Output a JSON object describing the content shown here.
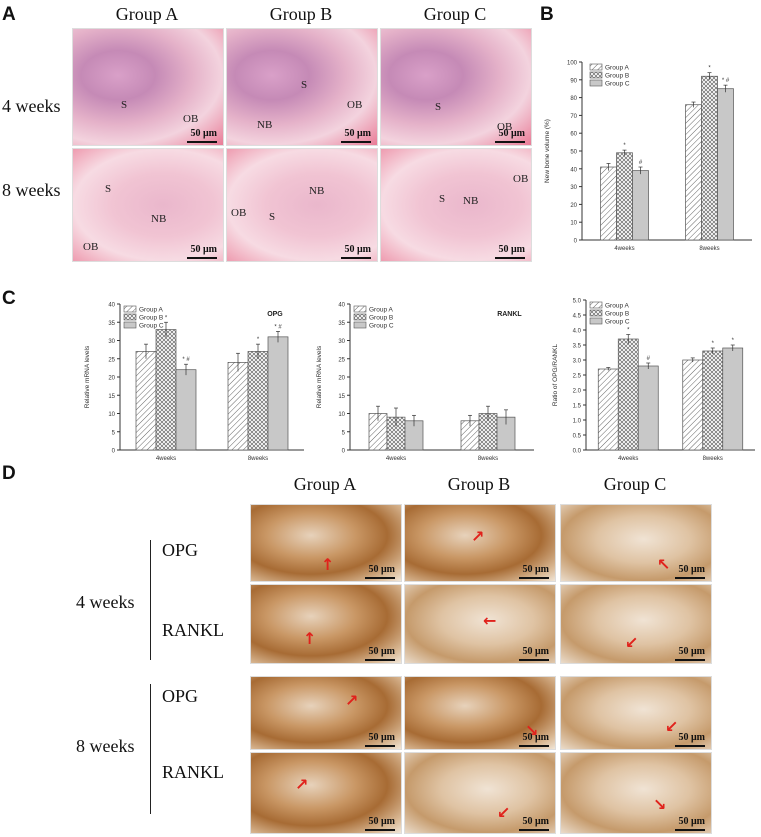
{
  "panels": {
    "A": {
      "letter": "A",
      "columns": [
        "Group A",
        "Group B",
        "Group C"
      ],
      "rows": [
        "4 weeks",
        "8 weeks"
      ],
      "scale": "50 μm",
      "labels": {
        "r0c0": [
          "S",
          "OB"
        ],
        "r0c1": [
          "S",
          "NB",
          "OB"
        ],
        "r0c2": [
          "S",
          "OB"
        ],
        "r1c0": [
          "S",
          "NB",
          "OB"
        ],
        "r1c1": [
          "NB",
          "S",
          "OB"
        ],
        "r1c2": [
          "S",
          "NB",
          "OB"
        ]
      }
    },
    "B": {
      "letter": "B"
    },
    "C": {
      "letter": "C"
    },
    "D": {
      "letter": "D",
      "columns": [
        "Group A",
        "Group B",
        "Group C"
      ],
      "time_labels": [
        "4 weeks",
        "8 weeks"
      ],
      "stain_labels": [
        "OPG",
        "RANKL",
        "OPG",
        "RANKL"
      ],
      "scale": "50 μm"
    }
  },
  "chart_data": [
    {
      "type": "bar",
      "panel": "B",
      "categories": [
        "4weeks",
        "8weeks"
      ],
      "series": [
        {
          "name": "Group A",
          "values": [
            41,
            76
          ],
          "errors": [
            2,
            1.5
          ],
          "marks": [
            "",
            ""
          ]
        },
        {
          "name": "Group B",
          "values": [
            49,
            92
          ],
          "errors": [
            1.5,
            2
          ],
          "marks": [
            "*",
            "*"
          ]
        },
        {
          "name": "Group C",
          "values": [
            39,
            85
          ],
          "errors": [
            2,
            2
          ],
          "marks": [
            "#",
            "* #"
          ]
        }
      ],
      "ylabel": "New bone volume (%)",
      "ylim": [
        0,
        100
      ],
      "yticks": [
        0,
        10,
        20,
        30,
        40,
        50,
        60,
        70,
        80,
        90,
        100
      ],
      "legend": "top-left"
    },
    {
      "type": "bar",
      "panel": "C",
      "title": "OPG",
      "categories": [
        "4weeks",
        "8weeks"
      ],
      "series": [
        {
          "name": "Group A",
          "values": [
            27,
            24
          ],
          "errors": [
            2,
            2.5
          ],
          "marks": [
            "",
            ""
          ]
        },
        {
          "name": "Group B",
          "values": [
            33,
            27
          ],
          "errors": [
            2,
            2
          ],
          "marks": [
            "*",
            "*"
          ]
        },
        {
          "name": "Group C",
          "values": [
            22,
            31
          ],
          "errors": [
            1.5,
            1.5
          ],
          "marks": [
            "* #",
            "* #"
          ]
        }
      ],
      "ylabel": "Relative mRNA levels",
      "ylim": [
        0,
        40
      ],
      "yticks": [
        0,
        5,
        10,
        15,
        20,
        25,
        30,
        35,
        40
      ],
      "legend": "top-left"
    },
    {
      "type": "bar",
      "panel": "C",
      "title": "RANKL",
      "categories": [
        "4weeks",
        "8weeks"
      ],
      "series": [
        {
          "name": "Group A",
          "values": [
            10,
            8
          ],
          "errors": [
            2,
            1.5
          ],
          "marks": [
            "",
            ""
          ]
        },
        {
          "name": "Group B",
          "values": [
            9,
            10
          ],
          "errors": [
            2.5,
            2
          ],
          "marks": [
            "",
            ""
          ]
        },
        {
          "name": "Group C",
          "values": [
            8,
            9
          ],
          "errors": [
            1.5,
            2
          ],
          "marks": [
            "",
            ""
          ]
        }
      ],
      "ylabel": "Relative mRNA levels",
      "ylim": [
        0,
        40
      ],
      "yticks": [
        0,
        5,
        10,
        15,
        20,
        25,
        30,
        35,
        40
      ],
      "legend": "top-left"
    },
    {
      "type": "bar",
      "panel": "C",
      "categories": [
        "4weeks",
        "8weeks"
      ],
      "series": [
        {
          "name": "Group A",
          "values": [
            2.7,
            3.0
          ],
          "errors": [
            0.05,
            0.07
          ],
          "marks": [
            "",
            ""
          ]
        },
        {
          "name": "Group B",
          "values": [
            3.7,
            3.3
          ],
          "errors": [
            0.15,
            0.1
          ],
          "marks": [
            "*",
            "*"
          ]
        },
        {
          "name": "Group C",
          "values": [
            2.8,
            3.4
          ],
          "errors": [
            0.1,
            0.1
          ],
          "marks": [
            "#",
            "*"
          ]
        }
      ],
      "ylabel": "Ratio of OPG/RANKL",
      "ylim": [
        0,
        5
      ],
      "yticks": [
        "0.0",
        "0.5",
        "1.0",
        "1.5",
        "2.0",
        "2.5",
        "3.0",
        "3.5",
        "4.0",
        "4.5",
        "5.0"
      ],
      "legend": "top-left"
    }
  ],
  "colors": {
    "bar_fill": "#ffffff",
    "bar_stroke": "#555555",
    "group_c_fill": "#c8c8c8",
    "arrow": "#e0221c",
    "he_outline_yellow": "#f2c23a",
    "he_outline_red": "#8a1010"
  }
}
